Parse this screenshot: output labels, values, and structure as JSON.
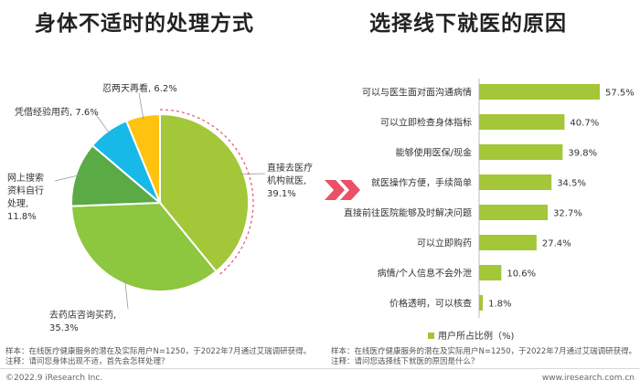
{
  "titles": {
    "left": "身体不适时的处理方式",
    "right": "选择线下就医的原因"
  },
  "chart_data": [
    {
      "type": "pie",
      "title": "身体不适时的处理方式",
      "slices": [
        {
          "label": "直接去医疗机构就医",
          "value": 39.1,
          "value_label": "39.1%",
          "color": "#a4c639",
          "label_lines": [
            "直接去医疗",
            "机构就医,",
            "39.1%"
          ]
        },
        {
          "label": "去药店咨询买药",
          "value": 35.3,
          "value_label": "35.3%",
          "color": "#8dc63f",
          "label_lines": [
            "去药店咨询买药,",
            "35.3%"
          ]
        },
        {
          "label": "网上搜索资料自行处理",
          "value": 11.8,
          "value_label": "11.8%",
          "color": "#5aaa46",
          "label_lines": [
            "网上搜索",
            "资料自行",
            "处理,",
            "11.8%"
          ]
        },
        {
          "label": "凭借经验用药",
          "value": 7.6,
          "value_label": "7.6%",
          "color": "#16b9e8",
          "label_lines": [
            "凭借经验用药, 7.6%"
          ]
        },
        {
          "label": "忍两天再看",
          "value": 6.2,
          "value_label": "6.2%",
          "color": "#ffc20e",
          "label_lines": [
            "忍两天再看, 6.2%"
          ]
        }
      ]
    },
    {
      "type": "bar",
      "orientation": "horizontal",
      "title": "选择线下就医的原因",
      "categories": [
        "可以与医生面对面沟通病情",
        "可以立即检查身体指标",
        "能够使用医保/现金",
        "就医操作方便，手续简单",
        "直接前往医院能够及时解决问题",
        "可以立即购药",
        "病情/个人信息不会外泄",
        "价格透明，可以核查"
      ],
      "series": [
        {
          "name": "用户所占比例（%)",
          "values": [
            57.5,
            40.7,
            39.8,
            34.5,
            32.7,
            27.4,
            10.6,
            1.8
          ],
          "color": "#a4c639"
        }
      ],
      "value_labels": [
        "57.5%",
        "40.7%",
        "39.8%",
        "34.5%",
        "32.7%",
        "27.4%",
        "10.6%",
        "1.8%"
      ],
      "legend_position": "bottom",
      "xlim": [
        0,
        57.5
      ]
    }
  ],
  "notes": {
    "left": [
      "样本：在线医疗健康服务的潜在及实际用户N=1250，于2022年7月通过艾瑞调研获得。",
      "注释：请问您身体出现不适，首先会怎样处理？"
    ],
    "right": [
      "样本：在线医疗健康服务的潜在及实际用户N=1250，于2022年7月通过艾瑞调研获得。",
      "注释：请问您选择线下就医的原因是什么？"
    ]
  },
  "footer": {
    "left": "©2022.9 iResearch Inc.",
    "right": "www.iresearch.com.cn"
  },
  "arrow_icon": "double-chevron-right-icon"
}
